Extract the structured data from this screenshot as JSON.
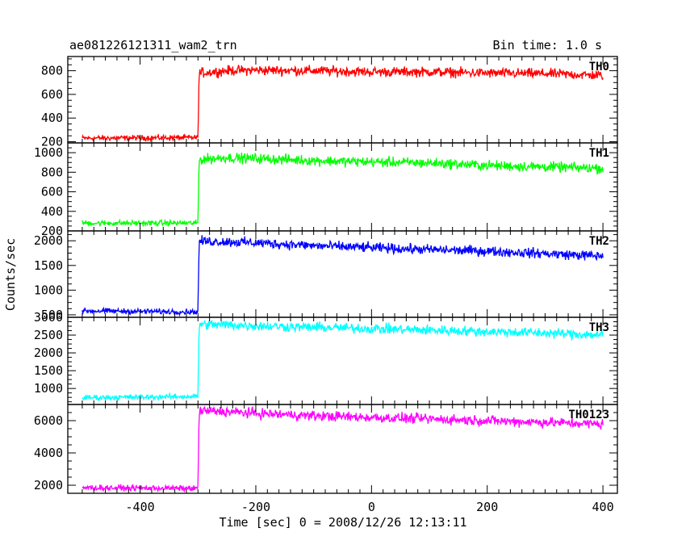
{
  "header": {
    "title": "ae081226121311_wam2_trn",
    "bin_time": "Bin time: 1.0 s"
  },
  "axes": {
    "xlabel": "Time [sec] 0 = 2008/12/26 12:13:11",
    "ylabel": "Counts/sec"
  },
  "colors": {
    "TH0": "#ff0000",
    "TH1": "#00ff00",
    "TH2": "#0000ff",
    "TH3": "#00ffff",
    "TH0123": "#ff00ff"
  },
  "chart_data": {
    "type": "line",
    "title": "ae081226121311_wam2_trn",
    "xlabel": "Time [sec] 0 = 2008/12/26 12:13:11",
    "ylabel": "Counts/sec",
    "xlim": [
      -525,
      425
    ],
    "x_ticks": [
      -400,
      -200,
      0,
      200,
      400
    ],
    "grid": false,
    "series": [
      {
        "name": "TH0",
        "color": "#ff0000",
        "ylim": [
          190,
          920
        ],
        "y_ticks": [
          200,
          400,
          600,
          800
        ],
        "x": [
          -500,
          -300,
          -298,
          -250,
          -200,
          -100,
          0,
          100,
          200,
          300,
          400
        ],
        "y": [
          230,
          235,
          780,
          800,
          805,
          800,
          790,
          790,
          780,
          775,
          760
        ]
      },
      {
        "name": "TH1",
        "color": "#00ff00",
        "ylim": [
          200,
          1100
        ],
        "y_ticks": [
          200,
          400,
          600,
          800,
          1000
        ],
        "x": [
          -500,
          -300,
          -298,
          -250,
          -200,
          -100,
          0,
          100,
          200,
          300,
          400
        ],
        "y": [
          280,
          280,
          930,
          950,
          940,
          920,
          905,
          895,
          870,
          855,
          840
        ]
      },
      {
        "name": "TH2",
        "color": "#0000ff",
        "ylim": [
          450,
          2200
        ],
        "y_ticks": [
          500,
          1000,
          1500,
          2000
        ],
        "x": [
          -500,
          -300,
          -298,
          -250,
          -200,
          -100,
          0,
          100,
          200,
          300,
          400
        ],
        "y": [
          580,
          560,
          1990,
          1980,
          1960,
          1900,
          1860,
          1820,
          1790,
          1740,
          1690
        ]
      },
      {
        "name": "TH3",
        "color": "#00ffff",
        "ylim": [
          550,
          3000
        ],
        "y_ticks": [
          1000,
          1500,
          2000,
          2500,
          3000
        ],
        "x": [
          -500,
          -300,
          -298,
          -250,
          -200,
          -100,
          0,
          100,
          200,
          300,
          400
        ],
        "y": [
          740,
          775,
          2800,
          2790,
          2760,
          2720,
          2680,
          2640,
          2600,
          2560,
          2500
        ]
      },
      {
        "name": "TH0123",
        "color": "#ff00ff",
        "ylim": [
          1500,
          7000
        ],
        "y_ticks": [
          2000,
          4000,
          6000
        ],
        "x": [
          -500,
          -300,
          -298,
          -250,
          -200,
          -100,
          0,
          100,
          200,
          300,
          400
        ],
        "y": [
          1850,
          1800,
          6600,
          6550,
          6450,
          6300,
          6200,
          6100,
          6000,
          5900,
          5780
        ]
      }
    ]
  }
}
